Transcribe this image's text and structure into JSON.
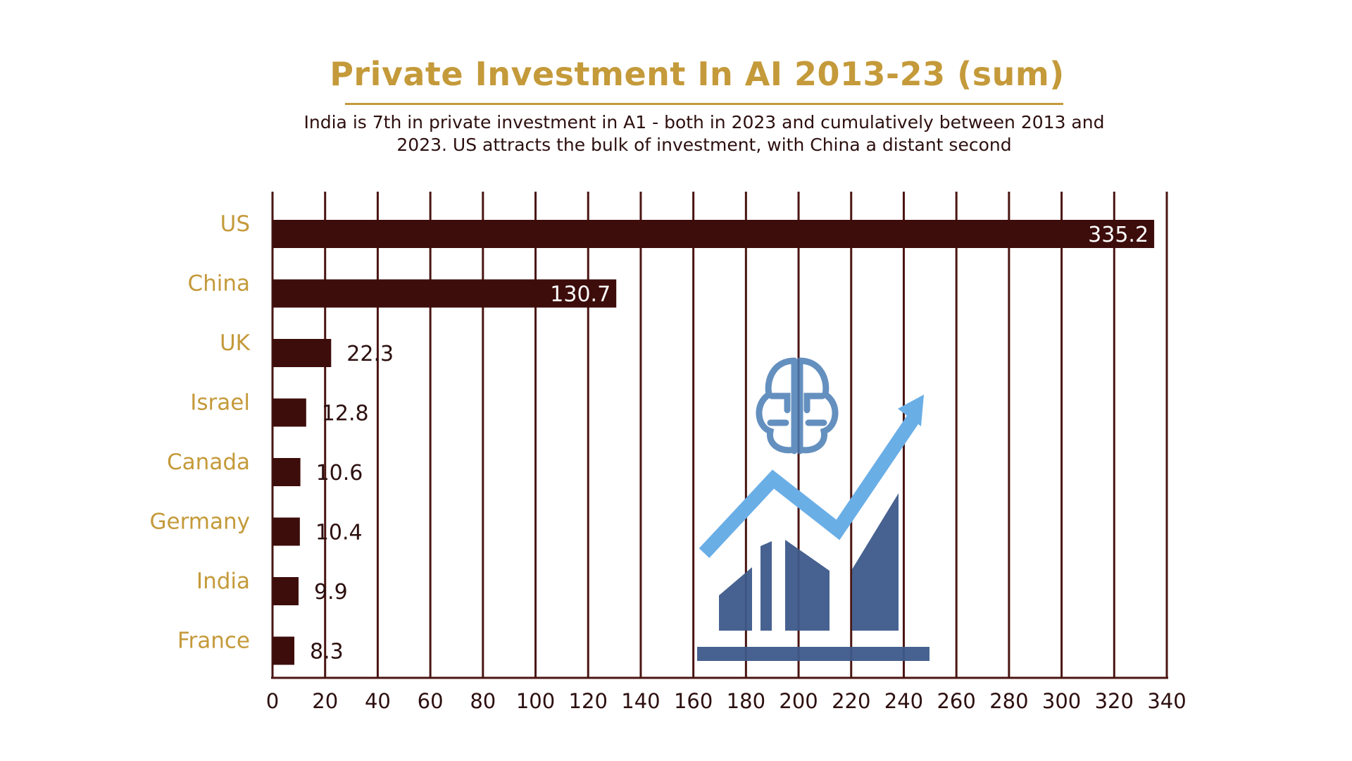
{
  "chart_data": {
    "type": "bar",
    "orientation": "horizontal",
    "title": "Private Investment In AI 2013-23 (sum)",
    "subtitle": "India is 7th in private investment in A1 - both in 2023 and  cumulatively between 2013 and 2023. US attracts the bulk of  investment, with China a distant second",
    "categories": [
      "US",
      "China",
      "UK",
      "Israel",
      "Canada",
      "Germany",
      "India",
      "France"
    ],
    "values": [
      335.2,
      130.7,
      22.3,
      12.8,
      10.6,
      10.4,
      9.9,
      8.3
    ],
    "data_labels": [
      "335.2",
      "130.7",
      "22.3",
      "12.8",
      "10.6",
      "10.4",
      "9.9",
      "8.3"
    ],
    "x_ticks": [
      "0",
      "20",
      "40",
      "60",
      "80",
      "100",
      "120",
      "140",
      "160",
      "180",
      "200",
      "220",
      "240",
      "260",
      "280",
      "300",
      "320",
      "340"
    ],
    "xlim": [
      0,
      340
    ],
    "xlabel": "",
    "ylabel": "",
    "grid": "vertical",
    "legend": "none",
    "colors": {
      "bar": "#3d0d0b",
      "grid": "#4a1512",
      "category_label": "#c49a3a",
      "title": "#c49a3a",
      "text": "#2d0f0f",
      "illustration_bars": "#3d5a8a",
      "illustration_arrow": "#6aaee6"
    },
    "illustration": "growth-chart-brain-icon"
  }
}
